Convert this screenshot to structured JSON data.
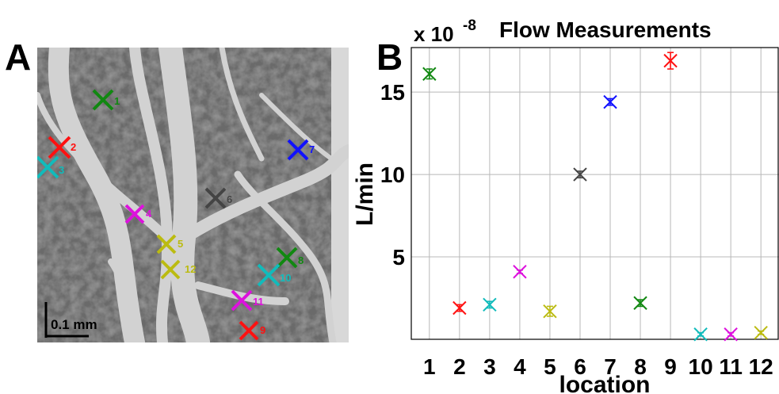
{
  "panels": {
    "a_letter": "A",
    "b_letter": "B"
  },
  "image_panel": {
    "scale_bar_label": "0.1 mm",
    "markers": [
      {
        "label": "1",
        "color": "#118811"
      },
      {
        "label": "2",
        "color": "#ff1111"
      },
      {
        "label": "3",
        "color": "#11bbbb"
      },
      {
        "label": "4",
        "color": "#dd11dd"
      },
      {
        "label": "5",
        "color": "#bbbb11"
      },
      {
        "label": "6",
        "color": "#444444"
      },
      {
        "label": "7",
        "color": "#1111ff"
      },
      {
        "label": "8",
        "color": "#118811"
      },
      {
        "label": "9",
        "color": "#ff1111"
      },
      {
        "label": "10",
        "color": "#11bbbb"
      },
      {
        "label": "11",
        "color": "#dd11dd"
      },
      {
        "label": "12",
        "color": "#bbbb11"
      }
    ]
  },
  "chart_data": {
    "type": "scatter",
    "title": "Flow Measurements",
    "xlabel": "location",
    "ylabel": "L/min",
    "y_multiplier_text": "x 10",
    "y_multiplier_exponent": "-8",
    "categories": [
      "1",
      "2",
      "3",
      "4",
      "5",
      "6",
      "7",
      "8",
      "9",
      "10",
      "11",
      "12"
    ],
    "values": [
      16.1,
      1.9,
      2.1,
      4.1,
      1.7,
      10.0,
      14.4,
      2.2,
      16.9,
      0.3,
      0.3,
      0.4
    ],
    "errors": [
      0.3,
      0.2,
      0.2,
      0.1,
      0.3,
      0.2,
      0.2,
      0.2,
      0.5,
      0.1,
      0.1,
      0.1
    ],
    "colors": [
      "#118811",
      "#ff1111",
      "#11bbbb",
      "#dd11dd",
      "#bbbb11",
      "#444444",
      "#1111ff",
      "#118811",
      "#ff1111",
      "#11bbbb",
      "#dd11dd",
      "#bbbb11"
    ],
    "ylim": [
      0,
      17.7
    ],
    "xlim": [
      0.4,
      12.6
    ],
    "yticks": [
      "5",
      "10",
      "15"
    ],
    "grid": true
  }
}
